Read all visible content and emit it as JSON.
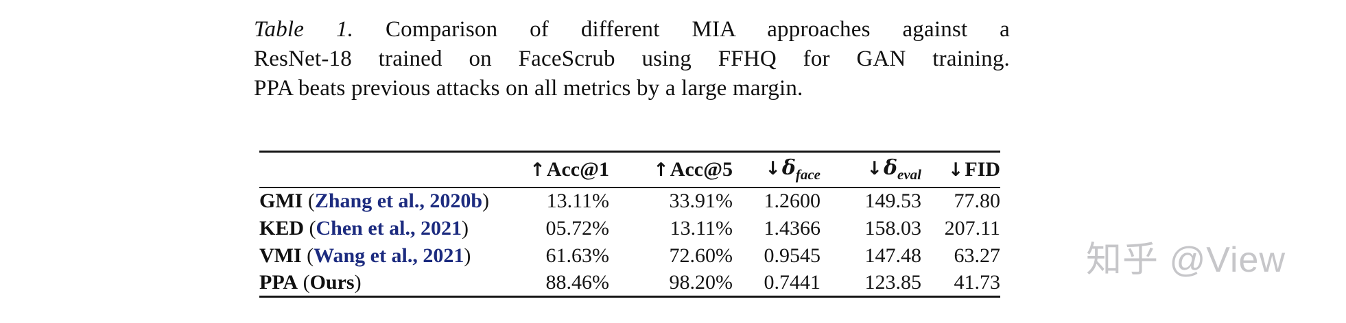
{
  "caption": {
    "label": "Table 1.",
    "line1": "Comparison of different MIA approaches against a",
    "line2": "ResNet-18 trained on FaceScrub using FFHQ for GAN training.",
    "line3": "PPA beats previous attacks on all metrics by a large margin."
  },
  "table": {
    "headers": [
      {
        "arrow": "↑",
        "text": "Acc@1",
        "italic": false,
        "sub": ""
      },
      {
        "arrow": "↑",
        "text": "Acc@5",
        "italic": false,
        "sub": ""
      },
      {
        "arrow": "↓",
        "text": "δ",
        "italic": true,
        "sub": "face"
      },
      {
        "arrow": "↓",
        "text": "δ",
        "italic": true,
        "sub": "eval"
      },
      {
        "arrow": "↓",
        "text": "FID",
        "italic": false,
        "sub": ""
      }
    ],
    "rows": [
      {
        "method": "GMI",
        "cite": "Zhang et al., 2020b",
        "cite_is_link": true,
        "bold": false,
        "values": [
          "13.11%",
          "33.91%",
          "1.2600",
          "149.53",
          "77.80"
        ]
      },
      {
        "method": "KED",
        "cite": "Chen et al., 2021",
        "cite_is_link": true,
        "bold": false,
        "values": [
          "05.72%",
          "13.11%",
          "1.4366",
          "158.03",
          "207.11"
        ]
      },
      {
        "method": "VMI",
        "cite": "Wang et al., 2021",
        "cite_is_link": true,
        "bold": false,
        "values": [
          "61.63%",
          "72.60%",
          "0.9545",
          "147.48",
          "63.27"
        ]
      },
      {
        "method": "PPA",
        "cite": "Ours",
        "cite_is_link": false,
        "bold": true,
        "values": [
          "88.46%",
          "98.20%",
          "0.7441",
          "123.85",
          "41.73"
        ]
      }
    ]
  },
  "watermark": {
    "text": "知乎 @View"
  },
  "colors": {
    "citation_link": "#1c2b7f",
    "body_text": "#101010",
    "rule": "#141414",
    "watermark": "#c6c6c9"
  }
}
